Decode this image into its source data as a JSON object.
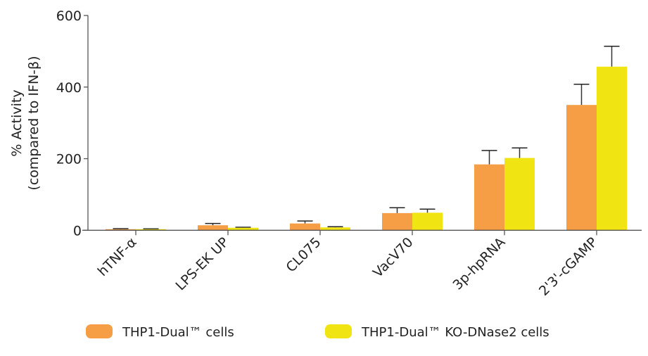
{
  "chart_data": {
    "type": "bar",
    "title": "",
    "ylabel_lines": [
      "% Activity",
      "(compared to IFN-β)"
    ],
    "xlabel": "",
    "ylim": [
      0,
      600
    ],
    "yticks": [
      0,
      200,
      400,
      600
    ],
    "grid": false,
    "legend_position": "bottom",
    "categories": [
      "hTNF-α",
      "LPS-EK UP",
      "CL075",
      "VacV70",
      "3p-hpRNA",
      "2'3'-cGAMP"
    ],
    "series": [
      {
        "name": "THP1-Dual™ cells",
        "color": "#f59e45",
        "values": [
          3,
          14,
          19,
          48,
          184,
          350
        ],
        "error_upper": [
          4.5,
          19,
          26,
          63,
          223,
          408
        ]
      },
      {
        "name": "THP1-Dual™ KO-DNase2 cells",
        "color": "#f0e513",
        "values": [
          3,
          7,
          8,
          49,
          202,
          457
        ],
        "error_upper": [
          4,
          8.5,
          10,
          59,
          230,
          514
        ]
      }
    ]
  }
}
